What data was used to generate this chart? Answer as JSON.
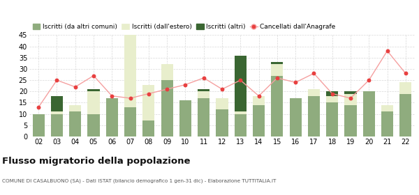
{
  "years": [
    "02",
    "03",
    "04",
    "05",
    "06",
    "07",
    "08",
    "09",
    "10",
    "11",
    "12",
    "13",
    "14",
    "15",
    "16",
    "17",
    "18",
    "19",
    "20",
    "21",
    "22"
  ],
  "iscritti_altri_comuni": [
    10,
    10,
    11,
    10,
    17,
    13,
    7,
    25,
    16,
    17,
    12,
    10,
    14,
    27,
    17,
    18,
    15,
    14,
    20,
    11,
    19
  ],
  "iscritti_estero": [
    0,
    1,
    3,
    10,
    0,
    32,
    16,
    7,
    0,
    3,
    5,
    1,
    4,
    5,
    0,
    3,
    3,
    5,
    0,
    3,
    5
  ],
  "iscritti_altri": [
    0,
    7,
    0,
    1,
    0,
    0,
    0,
    0,
    0,
    1,
    0,
    25,
    0,
    1,
    0,
    0,
    2,
    1,
    0,
    0,
    0
  ],
  "cancellati": [
    13,
    25,
    22,
    27,
    18,
    17,
    19,
    21,
    23,
    26,
    21,
    25,
    18,
    26,
    24,
    28,
    19,
    17,
    25,
    38,
    28
  ],
  "color_altri_comuni": "#8fac7e",
  "color_estero": "#e8eecc",
  "color_altri": "#3a6632",
  "color_cancellati": "#e84040",
  "color_cancellati_line": "#f5a0a0",
  "ylim": [
    0,
    45
  ],
  "yticks": [
    0,
    5,
    10,
    15,
    20,
    25,
    30,
    35,
    40,
    45
  ],
  "title": "Flusso migratorio della popolazione",
  "subtitle": "COMUNE DI CASALBUONO (SA) - Dati ISTAT (bilancio demografico 1 gen-31 dic) - Elaborazione TUTTITALIA.IT",
  "legend_labels": [
    "Iscritti (da altri comuni)",
    "Iscritti (dall'estero)",
    "Iscritti (altri)",
    "Cancellati dall'Anagrafe"
  ],
  "background_color": "#ffffff",
  "grid_color": "#d8d8d8"
}
